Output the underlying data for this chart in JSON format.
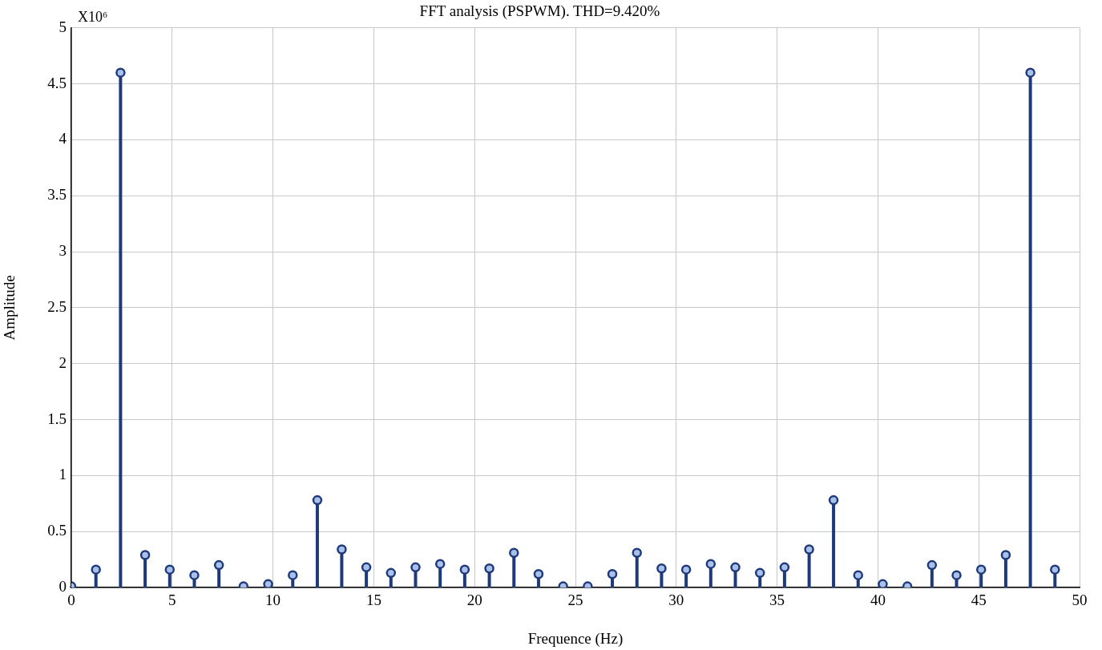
{
  "chart_data": {
    "type": "lollipop",
    "title": "FFT analysis (PSPWM). THD=9.420%",
    "xlabel": "Frequence (Hz)",
    "ylabel": "Amplitude",
    "annotations": [
      "X10⁶"
    ],
    "x": [
      0,
      1.22,
      2.44,
      3.66,
      4.88,
      6.1,
      7.32,
      8.54,
      9.76,
      10.98,
      12.2,
      13.41,
      14.63,
      15.85,
      17.07,
      18.29,
      19.51,
      20.73,
      21.95,
      23.17,
      24.39,
      25.61,
      26.83,
      28.05,
      29.27,
      30.49,
      31.71,
      32.93,
      34.15,
      35.37,
      36.59,
      37.8,
      39.02,
      40.24,
      41.46,
      42.68,
      43.9,
      45.12,
      46.34,
      47.56,
      48.78
    ],
    "values": [
      0.01,
      0.16,
      4.6,
      0.29,
      0.16,
      0.11,
      0.2,
      0.01,
      0.03,
      0.11,
      0.78,
      0.34,
      0.18,
      0.13,
      0.18,
      0.21,
      0.16,
      0.17,
      0.31,
      0.12,
      0.01,
      0.01,
      0.12,
      0.31,
      0.17,
      0.16,
      0.21,
      0.18,
      0.13,
      0.18,
      0.34,
      0.78,
      0.11,
      0.03,
      0.01,
      0.2,
      0.11,
      0.16,
      0.29,
      4.6,
      0.16
    ],
    "color": "#1f3a7a",
    "marker": "circle",
    "grid": true,
    "legend": false,
    "xlim": [
      0,
      50
    ],
    "xticks": [
      0,
      5,
      10,
      15,
      20,
      25,
      30,
      35,
      40,
      45,
      50
    ],
    "ylim": [
      0,
      5
    ],
    "yticks": [
      0,
      0.5,
      1,
      1.5,
      2,
      2.5,
      3,
      3.5,
      4,
      4.5,
      5
    ]
  }
}
